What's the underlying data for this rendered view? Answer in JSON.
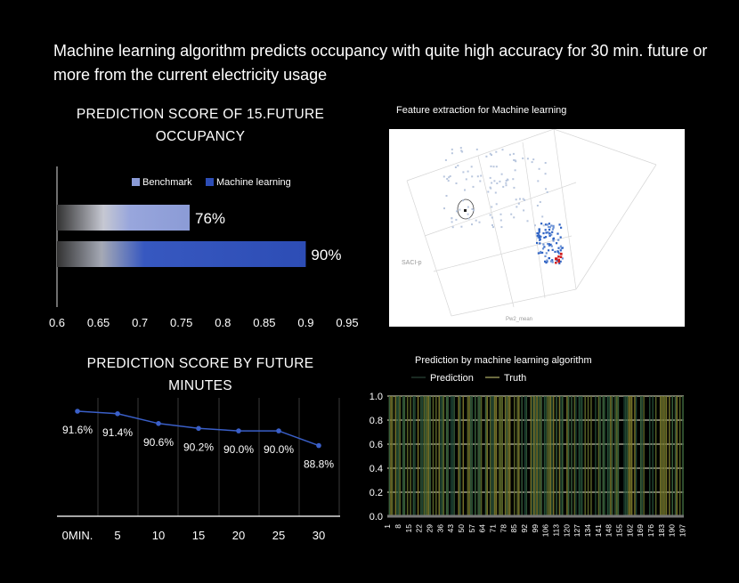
{
  "headline": "Machine learning algorithm predicts occupancy with quite high accuracy for 30 min. future or more from the current electricity usage",
  "chart_data": [
    {
      "type": "bar",
      "title": "PREDICTION SCORE OF 15.FUTURE OCCUPANCY",
      "orientation": "horizontal",
      "categories": [
        "Benchmark",
        "Machine learning"
      ],
      "values": [
        0.76,
        0.9
      ],
      "data_labels": [
        "76%",
        "90%"
      ],
      "legend": [
        "Benchmark",
        "Machine learning"
      ],
      "legend_position": "top",
      "xlim": [
        0.6,
        0.95
      ],
      "xticks": [
        "0.6",
        "0.65",
        "0.7",
        "0.75",
        "0.8",
        "0.85",
        "0.9",
        "0.95"
      ],
      "colors": [
        "#8b9bd6",
        "#2d4db5"
      ]
    },
    {
      "type": "scatter",
      "title": "Feature extraction for Machine learning",
      "axis_labels": [
        "SACI-p",
        "Pw2_mean"
      ],
      "note": "3D scatter plot image"
    },
    {
      "type": "line",
      "title": "PREDICTION SCORE BY FUTURE MINUTES",
      "categories": [
        "0MIN.",
        "5",
        "10",
        "15",
        "20",
        "25",
        "30"
      ],
      "values": [
        91.6,
        91.4,
        90.6,
        90.2,
        90.0,
        90.0,
        88.8
      ],
      "data_labels": [
        "91.6%",
        "91.4%",
        "90.6%",
        "90.2%",
        "90.0%",
        "90.0%",
        "88.8%"
      ],
      "color": "#3a5fc8"
    },
    {
      "type": "line",
      "title": "Prediction by machine learning algorithm",
      "series": [
        {
          "name": "Prediction"
        },
        {
          "name": "Truth"
        }
      ],
      "ylim": [
        0.0,
        1.0
      ],
      "yticks": [
        "0.0",
        "0.2",
        "0.4",
        "0.6",
        "0.8",
        "1.0"
      ],
      "xticks": [
        "1",
        "8",
        "15",
        "22",
        "29",
        "36",
        "43",
        "50",
        "57",
        "64",
        "71",
        "78",
        "85",
        "92",
        "99",
        "106",
        "113",
        "120",
        "127",
        "134",
        "141",
        "148",
        "155",
        "162",
        "169",
        "176",
        "183",
        "190",
        "197"
      ],
      "grid": true
    }
  ]
}
